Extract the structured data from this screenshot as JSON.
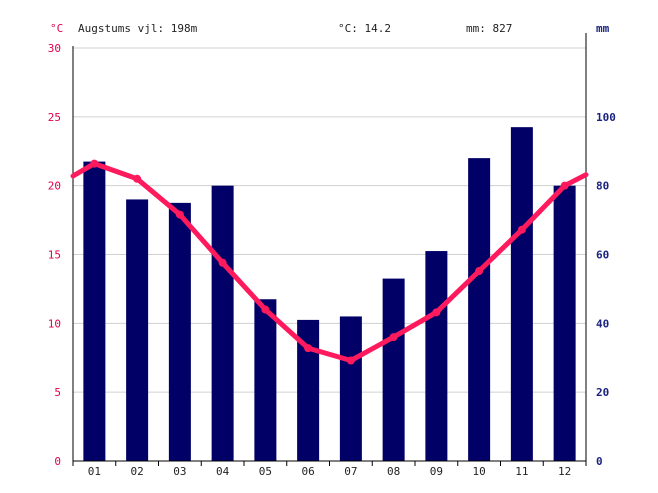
{
  "header": {
    "left_unit": "°C",
    "right_unit": "mm",
    "elevation": "Augstums vjl: 198m",
    "avg_temp": "°C: 14.2",
    "total_precip": "mm: 827"
  },
  "chart_data": {
    "type": "bar+line",
    "categories": [
      "01",
      "02",
      "03",
      "04",
      "05",
      "06",
      "07",
      "08",
      "09",
      "10",
      "11",
      "12"
    ],
    "precipitation": {
      "axis": "right",
      "unit": "mm",
      "ylim": [
        0,
        120
      ],
      "ticks": [
        0,
        20,
        40,
        60,
        80,
        100
      ],
      "values": [
        87,
        76,
        75,
        80,
        47,
        41,
        42,
        53,
        61,
        88,
        97,
        80
      ],
      "color": "#000066"
    },
    "temperature": {
      "axis": "left",
      "unit": "°C",
      "ylim": [
        0,
        30
      ],
      "ticks": [
        0,
        5,
        10,
        15,
        20,
        25,
        30
      ],
      "values": [
        21.6,
        20.5,
        17.9,
        14.4,
        11.0,
        8.2,
        7.3,
        9.0,
        10.8,
        13.8,
        16.8,
        20.0
      ],
      "edge_values": [
        20.7,
        20.8
      ],
      "color": "#ff1a5e"
    },
    "grid": true
  }
}
